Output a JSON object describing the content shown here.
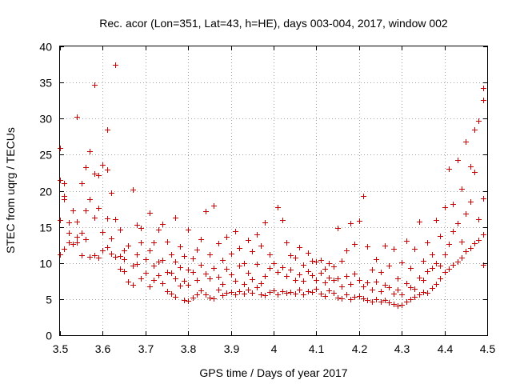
{
  "chart_data": {
    "type": "scatter",
    "title": "Rec. acor (Lon=351, Lat=43, h=HE), days 003-004, 2017, window 002",
    "xlabel": "GPS time / Days of year 2017",
    "ylabel": "STEC from uqrg / TECUs",
    "xlim": [
      3.5,
      4.5
    ],
    "ylim": [
      0,
      40
    ],
    "xticks": [
      3.5,
      3.6,
      3.7,
      3.8,
      3.9,
      4.0,
      4.1,
      4.2,
      4.3,
      4.4,
      4.5
    ],
    "xtick_labels": [
      "3.5",
      "3.6",
      "3.7",
      "3.8",
      "3.9",
      "4",
      "4.1",
      "4.2",
      "4.3",
      "4.4",
      "4.5"
    ],
    "yticks": [
      0,
      5,
      10,
      15,
      20,
      25,
      30,
      35,
      40
    ],
    "ytick_labels": [
      "0",
      "5",
      "10",
      "15",
      "20",
      "25",
      "30",
      "35",
      "40"
    ],
    "grid": true,
    "marker": "plus",
    "color": "#cc0000",
    "series": [
      {
        "name": "STEC",
        "points": [
          [
            3.5,
            11.2
          ],
          [
            3.5,
            16.0
          ],
          [
            3.5,
            21.5
          ],
          [
            3.5,
            25.9
          ],
          [
            3.51,
            12.0
          ],
          [
            3.51,
            18.8
          ],
          [
            3.51,
            21.1
          ],
          [
            3.51,
            19.3
          ],
          [
            3.52,
            12.9
          ],
          [
            3.52,
            14.2
          ],
          [
            3.52,
            15.6
          ],
          [
            3.53,
            12.6
          ],
          [
            3.53,
            17.3
          ],
          [
            3.54,
            13.6
          ],
          [
            3.54,
            15.7
          ],
          [
            3.54,
            30.3
          ],
          [
            3.54,
            12.8
          ],
          [
            3.55,
            11.1
          ],
          [
            3.55,
            14.2
          ],
          [
            3.55,
            21.0
          ],
          [
            3.56,
            13.3
          ],
          [
            3.56,
            23.3
          ],
          [
            3.56,
            17.3
          ],
          [
            3.57,
            10.9
          ],
          [
            3.57,
            18.8
          ],
          [
            3.57,
            25.5
          ],
          [
            3.58,
            11.1
          ],
          [
            3.58,
            16.3
          ],
          [
            3.58,
            22.4
          ],
          [
            3.58,
            34.7
          ],
          [
            3.59,
            10.7
          ],
          [
            3.59,
            17.6
          ],
          [
            3.59,
            22.2
          ],
          [
            3.6,
            11.7
          ],
          [
            3.6,
            14.3
          ],
          [
            3.6,
            23.6
          ],
          [
            3.61,
            12.2
          ],
          [
            3.61,
            16.2
          ],
          [
            3.61,
            22.9
          ],
          [
            3.61,
            28.5
          ],
          [
            3.62,
            11.3
          ],
          [
            3.62,
            13.4
          ],
          [
            3.62,
            19.7
          ],
          [
            3.63,
            10.9
          ],
          [
            3.63,
            16.1
          ],
          [
            3.63,
            37.5
          ],
          [
            3.64,
            9.2
          ],
          [
            3.64,
            11.0
          ],
          [
            3.64,
            14.6
          ],
          [
            3.65,
            8.9
          ],
          [
            3.65,
            10.5
          ],
          [
            3.65,
            11.8
          ],
          [
            3.66,
            7.4
          ],
          [
            3.66,
            12.4
          ],
          [
            3.67,
            9.6
          ],
          [
            3.67,
            20.2
          ],
          [
            3.67,
            7.0
          ],
          [
            3.68,
            9.9
          ],
          [
            3.68,
            15.3
          ],
          [
            3.68,
            11.2
          ],
          [
            3.69,
            7.9
          ],
          [
            3.69,
            12.8
          ],
          [
            3.69,
            14.9
          ],
          [
            3.7,
            8.6
          ],
          [
            3.7,
            10.5
          ],
          [
            3.71,
            6.8
          ],
          [
            3.71,
            17.0
          ],
          [
            3.71,
            11.8
          ],
          [
            3.72,
            7.6
          ],
          [
            3.72,
            9.6
          ],
          [
            3.72,
            12.9
          ],
          [
            3.73,
            8.3
          ],
          [
            3.73,
            10.2
          ],
          [
            3.73,
            14.6
          ],
          [
            3.74,
            7.2
          ],
          [
            3.74,
            10.4
          ],
          [
            3.74,
            15.4
          ],
          [
            3.75,
            6.1
          ],
          [
            3.75,
            8.8
          ],
          [
            3.75,
            13.0
          ],
          [
            3.76,
            5.8
          ],
          [
            3.76,
            8.6
          ],
          [
            3.76,
            11.2
          ],
          [
            3.77,
            5.3
          ],
          [
            3.77,
            7.9
          ],
          [
            3.77,
            10.2
          ],
          [
            3.77,
            16.3
          ],
          [
            3.78,
            6.9
          ],
          [
            3.78,
            9.4
          ],
          [
            3.78,
            12.3
          ],
          [
            3.79,
            4.9
          ],
          [
            3.79,
            7.5
          ],
          [
            3.79,
            11.0
          ],
          [
            3.8,
            4.8
          ],
          [
            3.8,
            7.0
          ],
          [
            3.8,
            9.1
          ],
          [
            3.8,
            14.6
          ],
          [
            3.81,
            5.2
          ],
          [
            3.81,
            8.7
          ],
          [
            3.81,
            10.6
          ],
          [
            3.82,
            5.7
          ],
          [
            3.82,
            7.6
          ],
          [
            3.82,
            11.9
          ],
          [
            3.83,
            6.2
          ],
          [
            3.83,
            9.8
          ],
          [
            3.83,
            13.3
          ],
          [
            3.84,
            5.6
          ],
          [
            3.84,
            8.5
          ],
          [
            3.84,
            17.2
          ],
          [
            3.85,
            5.2
          ],
          [
            3.85,
            7.9
          ],
          [
            3.85,
            11.2
          ],
          [
            3.86,
            5.1
          ],
          [
            3.86,
            9.3
          ],
          [
            3.86,
            18.0
          ],
          [
            3.87,
            6.3
          ],
          [
            3.87,
            8.1
          ],
          [
            3.87,
            12.7
          ],
          [
            3.88,
            5.5
          ],
          [
            3.88,
            7.1
          ],
          [
            3.88,
            10.4
          ],
          [
            3.89,
            5.9
          ],
          [
            3.89,
            9.2
          ],
          [
            3.89,
            13.6
          ],
          [
            3.9,
            6.0
          ],
          [
            3.9,
            8.4
          ],
          [
            3.9,
            11.3
          ],
          [
            3.91,
            5.7
          ],
          [
            3.91,
            7.5
          ],
          [
            3.91,
            14.4
          ],
          [
            3.92,
            6.1
          ],
          [
            3.92,
            9.6
          ],
          [
            3.92,
            12.1
          ],
          [
            3.93,
            5.8
          ],
          [
            3.93,
            7.1
          ],
          [
            3.93,
            10.0
          ],
          [
            3.94,
            6.3
          ],
          [
            3.94,
            8.6
          ],
          [
            3.94,
            13.2
          ],
          [
            3.95,
            5.9
          ],
          [
            3.95,
            7.8
          ],
          [
            3.95,
            11.6
          ],
          [
            3.96,
            6.6
          ],
          [
            3.96,
            9.9
          ],
          [
            3.96,
            14.0
          ],
          [
            3.97,
            5.6
          ],
          [
            3.97,
            7.2
          ],
          [
            3.97,
            12.4
          ],
          [
            3.98,
            5.5
          ],
          [
            3.98,
            8.2
          ],
          [
            3.98,
            15.6
          ],
          [
            3.99,
            6.0
          ],
          [
            3.99,
            9.3
          ],
          [
            3.99,
            11.2
          ],
          [
            4.0,
            6.2
          ],
          [
            4.0,
            10.0
          ],
          [
            4.01,
            5.7
          ],
          [
            4.01,
            8.7
          ],
          [
            4.01,
            17.7
          ],
          [
            4.02,
            6.1
          ],
          [
            4.02,
            9.4
          ],
          [
            4.02,
            16.0
          ],
          [
            4.03,
            5.9
          ],
          [
            4.03,
            8.2
          ],
          [
            4.03,
            12.8
          ],
          [
            4.04,
            6.0
          ],
          [
            4.04,
            9.1
          ],
          [
            4.04,
            11.1
          ],
          [
            4.05,
            5.8
          ],
          [
            4.05,
            7.7
          ],
          [
            4.05,
            10.7
          ],
          [
            4.06,
            6.3
          ],
          [
            4.06,
            8.4
          ],
          [
            4.06,
            12.2
          ],
          [
            4.07,
            5.6
          ],
          [
            4.07,
            7.5
          ],
          [
            4.07,
            9.8
          ],
          [
            4.08,
            6.1
          ],
          [
            4.08,
            8.9
          ],
          [
            4.08,
            11.4
          ],
          [
            4.09,
            6.0
          ],
          [
            4.09,
            8.3
          ],
          [
            4.09,
            10.3
          ],
          [
            4.1,
            6.4
          ],
          [
            4.1,
            7.7
          ],
          [
            4.1,
            10.2
          ],
          [
            4.11,
            5.8
          ],
          [
            4.11,
            8.6
          ],
          [
            4.11,
            10.4
          ],
          [
            4.12,
            5.4
          ],
          [
            4.12,
            7.3
          ],
          [
            4.12,
            9.2
          ],
          [
            4.13,
            6.2
          ],
          [
            4.13,
            8.0
          ],
          [
            4.13,
            10.0
          ],
          [
            4.14,
            5.9
          ],
          [
            4.14,
            7.6
          ],
          [
            4.14,
            9.5
          ],
          [
            4.15,
            5.2
          ],
          [
            4.15,
            7.9
          ],
          [
            4.15,
            14.9
          ],
          [
            4.16,
            5.1
          ],
          [
            4.16,
            6.8
          ],
          [
            4.16,
            10.3
          ],
          [
            4.17,
            5.6
          ],
          [
            4.17,
            8.2
          ],
          [
            4.17,
            11.7
          ],
          [
            4.18,
            5.0
          ],
          [
            4.18,
            7.1
          ],
          [
            4.18,
            15.5
          ],
          [
            4.19,
            5.3
          ],
          [
            4.19,
            8.5
          ],
          [
            4.19,
            12.6
          ],
          [
            4.2,
            5.4
          ],
          [
            4.2,
            7.6
          ],
          [
            4.2,
            15.8
          ],
          [
            4.21,
            5.1
          ],
          [
            4.21,
            6.8
          ],
          [
            4.21,
            19.3
          ],
          [
            4.22,
            4.9
          ],
          [
            4.22,
            7.3
          ],
          [
            4.22,
            12.3
          ],
          [
            4.23,
            4.7
          ],
          [
            4.23,
            6.3
          ],
          [
            4.23,
            9.1
          ],
          [
            4.24,
            5.0
          ],
          [
            4.24,
            7.4
          ],
          [
            4.24,
            10.5
          ],
          [
            4.25,
            4.6
          ],
          [
            4.25,
            6.1
          ],
          [
            4.25,
            8.7
          ],
          [
            4.26,
            4.9
          ],
          [
            4.26,
            7.0
          ],
          [
            4.26,
            12.4
          ],
          [
            4.27,
            4.5
          ],
          [
            4.27,
            6.6
          ],
          [
            4.27,
            9.6
          ],
          [
            4.28,
            4.3
          ],
          [
            4.28,
            5.8
          ],
          [
            4.28,
            12.0
          ],
          [
            4.29,
            4.1
          ],
          [
            4.29,
            6.3
          ],
          [
            4.29,
            7.9
          ],
          [
            4.3,
            4.2
          ],
          [
            4.3,
            5.6
          ],
          [
            4.3,
            10.1
          ],
          [
            4.31,
            4.6
          ],
          [
            4.31,
            7.2
          ],
          [
            4.31,
            13.1
          ],
          [
            4.32,
            5.0
          ],
          [
            4.32,
            6.6
          ],
          [
            4.32,
            9.3
          ],
          [
            4.33,
            5.3
          ],
          [
            4.33,
            6.4
          ],
          [
            4.33,
            12.0
          ],
          [
            4.34,
            5.7
          ],
          [
            4.34,
            8.0
          ],
          [
            4.34,
            15.7
          ],
          [
            4.35,
            6.0
          ],
          [
            4.35,
            7.6
          ],
          [
            4.35,
            10.3
          ],
          [
            4.36,
            5.9
          ],
          [
            4.36,
            8.9
          ],
          [
            4.36,
            12.8
          ],
          [
            4.37,
            6.5
          ],
          [
            4.37,
            9.3
          ],
          [
            4.37,
            11.2
          ],
          [
            4.38,
            7.1
          ],
          [
            4.38,
            10.0
          ],
          [
            4.38,
            16.0
          ],
          [
            4.39,
            7.9
          ],
          [
            4.39,
            9.6
          ],
          [
            4.39,
            13.7
          ],
          [
            4.4,
            8.7
          ],
          [
            4.4,
            11.2
          ],
          [
            4.4,
            17.7
          ],
          [
            4.41,
            9.2
          ],
          [
            4.41,
            12.6
          ],
          [
            4.41,
            23.1
          ],
          [
            4.42,
            9.7
          ],
          [
            4.42,
            14.4
          ],
          [
            4.42,
            18.2
          ],
          [
            4.43,
            10.2
          ],
          [
            4.43,
            15.5
          ],
          [
            4.43,
            24.3
          ],
          [
            4.44,
            10.8
          ],
          [
            4.44,
            13.0
          ],
          [
            4.44,
            20.3
          ],
          [
            4.45,
            11.6
          ],
          [
            4.45,
            16.8
          ],
          [
            4.45,
            26.8
          ],
          [
            4.46,
            12.1
          ],
          [
            4.46,
            18.5
          ],
          [
            4.46,
            23.4
          ],
          [
            4.47,
            12.7
          ],
          [
            4.47,
            22.6
          ],
          [
            4.47,
            28.5
          ],
          [
            4.48,
            13.2
          ],
          [
            4.48,
            16.1
          ],
          [
            4.48,
            29.7
          ],
          [
            4.49,
            9.7
          ],
          [
            4.49,
            14.0
          ],
          [
            4.49,
            19.0
          ],
          [
            4.49,
            32.6
          ],
          [
            4.49,
            34.2
          ]
        ]
      }
    ]
  }
}
